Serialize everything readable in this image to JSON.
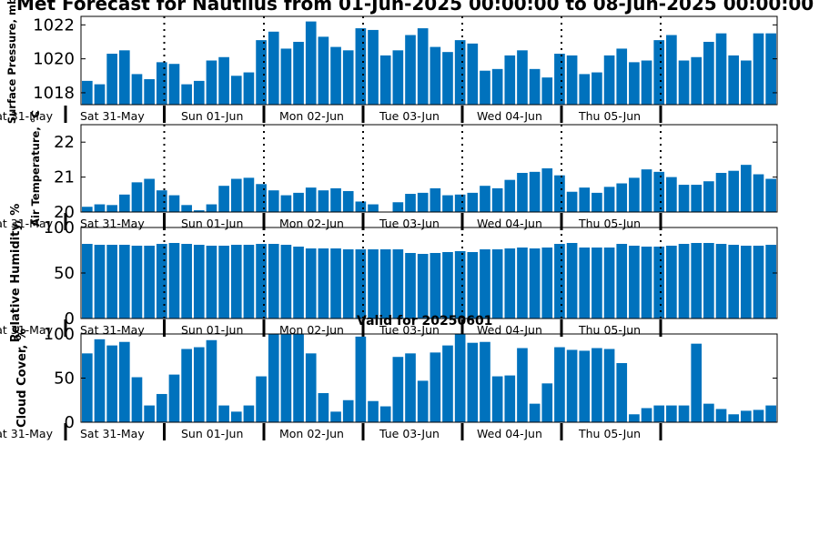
{
  "page": {
    "title": "Met Forecast for Nautilus from 01-Jun-2025 00:00:00 to 08-Jun-2025 00:00:00",
    "valid_label": "Valid for 20250601"
  },
  "colors": {
    "bar": "#0072bd",
    "axis": "#000000",
    "divider": "#000000"
  },
  "day_labels": [
    "Sat 31-May",
    "Sun 01-Jun",
    "Mon 02-Jun",
    "Tue 03-Jun",
    "Wed 04-Jun",
    "Thu 05-Jun"
  ],
  "chart_data": [
    {
      "type": "bar",
      "ylabel": "Surface Pressure, mb",
      "ylim": [
        1017.3,
        1022.5
      ],
      "yticks": [
        1018,
        1020,
        1022
      ],
      "values": [
        1018.7,
        1018.5,
        1020.3,
        1020.5,
        1019.1,
        1018.8,
        1019.8,
        1019.7,
        1018.5,
        1018.7,
        1019.9,
        1020.1,
        1019.0,
        1019.2,
        1021.1,
        1021.6,
        1020.6,
        1021.0,
        1022.2,
        1021.3,
        1020.7,
        1020.5,
        1021.8,
        1021.7,
        1020.2,
        1020.5,
        1021.4,
        1021.8,
        1020.7,
        1020.4,
        1021.1,
        1020.9,
        1019.3,
        1019.4,
        1020.2,
        1020.5,
        1019.4,
        1018.9,
        1020.3,
        1020.2,
        1019.1,
        1019.2,
        1020.2,
        1020.6,
        1019.8,
        1019.9,
        1021.1,
        1021.4,
        1019.9,
        1020.1,
        1021.0,
        1021.5,
        1020.2,
        1019.9,
        1021.5,
        1021.5
      ]
    },
    {
      "type": "bar",
      "ylabel": "Air Temperature, °C",
      "ylim": [
        20.0,
        22.5
      ],
      "yticks": [
        20,
        21,
        22
      ],
      "values": [
        20.15,
        20.22,
        20.2,
        20.5,
        20.85,
        20.95,
        20.62,
        20.48,
        20.2,
        20.05,
        20.22,
        20.75,
        20.95,
        20.98,
        20.8,
        20.62,
        20.48,
        20.55,
        20.7,
        20.62,
        20.68,
        20.6,
        20.3,
        20.22,
        20.0,
        20.28,
        20.52,
        20.55,
        20.68,
        20.48,
        20.5,
        20.55,
        20.75,
        20.68,
        20.92,
        21.12,
        21.15,
        21.25,
        21.05,
        20.58,
        20.7,
        20.55,
        20.72,
        20.82,
        20.98,
        21.22,
        21.15,
        21.0,
        20.78,
        20.78,
        20.88,
        21.12,
        21.18,
        21.35,
        21.08,
        20.95
      ]
    },
    {
      "type": "bar",
      "ylabel": "Relative Humidity, %",
      "ylim": [
        0,
        100
      ],
      "yticks": [
        0,
        50,
        100
      ],
      "values": [
        82,
        81,
        81,
        81,
        80,
        80,
        82,
        83,
        82,
        81,
        80,
        80,
        81,
        81,
        82,
        82,
        81,
        79,
        77,
        77,
        77,
        76,
        76,
        76,
        76,
        76,
        72,
        71,
        72,
        73,
        74,
        73,
        76,
        76,
        77,
        78,
        77,
        78,
        82,
        83,
        78,
        78,
        78,
        82,
        80,
        79,
        79,
        80,
        82,
        83,
        83,
        82,
        81,
        80,
        80,
        81
      ]
    },
    {
      "type": "bar",
      "ylabel": "Cloud Cover, %",
      "ylim": [
        0,
        100
      ],
      "yticks": [
        0,
        50,
        100
      ],
      "values": [
        78,
        94,
        87,
        91,
        51,
        19,
        32,
        54,
        83,
        85,
        93,
        19,
        12,
        19,
        52,
        100,
        100,
        100,
        78,
        33,
        12,
        25,
        97,
        24,
        18,
        74,
        78,
        47,
        79,
        87,
        100,
        90,
        91,
        52,
        53,
        84,
        21,
        44,
        85,
        82,
        81,
        84,
        83,
        67,
        9,
        16,
        19,
        19,
        19,
        89,
        21,
        15,
        9,
        13,
        14,
        19
      ]
    }
  ]
}
